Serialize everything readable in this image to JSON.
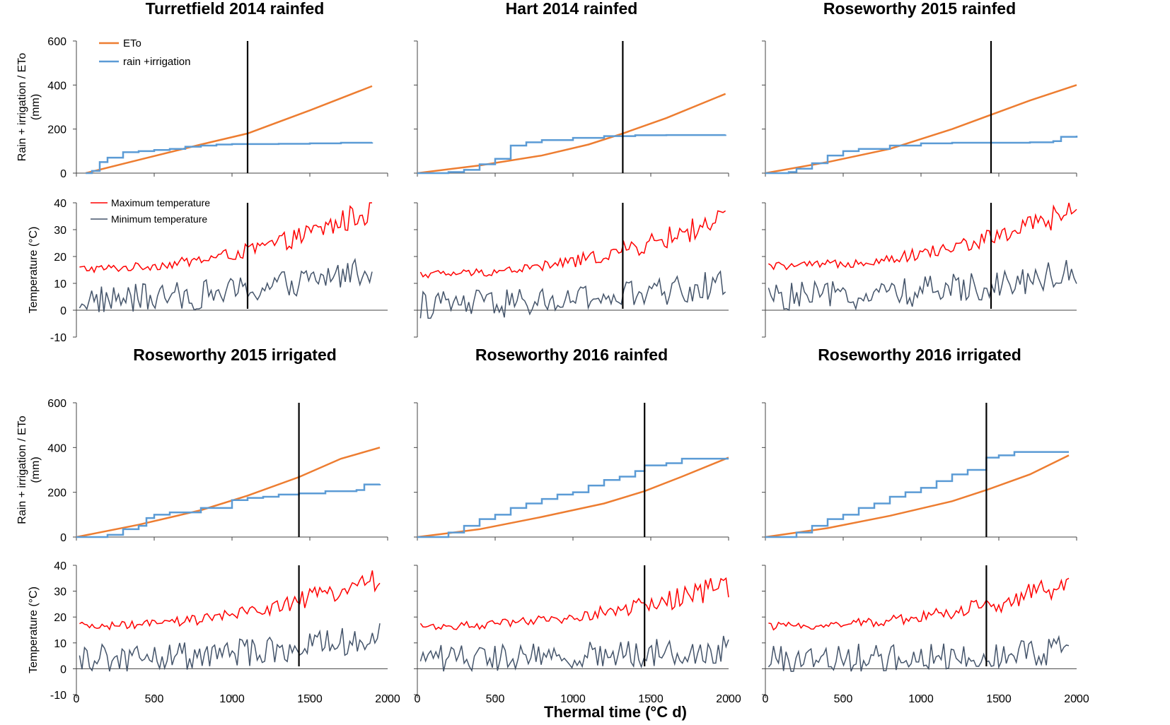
{
  "chart_data": {
    "type": "line",
    "shared_xlabel": "Thermal time (°C d)",
    "xlim": [
      0,
      2000
    ],
    "x_ticks": [
      0,
      500,
      1000,
      1500,
      2000
    ],
    "rain_panel": {
      "ylabel_line1": "Rain + irrigation / ETo",
      "ylabel_line2": "(mm)",
      "ylim": [
        0,
        600
      ],
      "y_ticks": [
        0,
        200,
        400,
        600
      ],
      "legend": [
        {
          "name": "ETo",
          "color": "#ED7D31"
        },
        {
          "name": "rain +irrigation",
          "color": "#5B9BD5"
        }
      ]
    },
    "temp_panel": {
      "ylabel": "Temperature (°C)",
      "ylim": [
        -10,
        40
      ],
      "y_ticks": [
        -10,
        0,
        10,
        20,
        30,
        40
      ],
      "legend": [
        {
          "name": "Maximum temperature",
          "color": "#FF0000"
        },
        {
          "name": "Minimum temperature",
          "color": "#44546A"
        }
      ]
    },
    "sites": [
      {
        "title": "Turretfield 2014 rainfed",
        "flowering_tt": 1100,
        "x_end": 1900,
        "eto": {
          "x": [
            60,
            400,
            800,
            1100,
            1500,
            1900
          ],
          "y": [
            0,
            60,
            130,
            180,
            285,
            395
          ]
        },
        "rain_irrigation": {
          "x": [
            60,
            100,
            150,
            200,
            300,
            400,
            500,
            600,
            700,
            800,
            900,
            1000,
            1100,
            1300,
            1500,
            1700,
            1900
          ],
          "y": [
            0,
            10,
            50,
            70,
            95,
            100,
            105,
            110,
            120,
            125,
            130,
            132,
            132,
            133,
            135,
            138,
            140
          ]
        },
        "tmax_range": [
          11,
          40
        ],
        "tmin_range": [
          -1,
          24
        ]
      },
      {
        "title": "Hart 2014 rainfed",
        "flowering_tt": 1320,
        "x_end": 1980,
        "eto": {
          "x": [
            0,
            400,
            800,
            1100,
            1320,
            1600,
            1980
          ],
          "y": [
            0,
            35,
            80,
            130,
            180,
            250,
            360
          ]
        },
        "rain_irrigation": {
          "x": [
            0,
            200,
            300,
            400,
            500,
            600,
            700,
            800,
            1000,
            1200,
            1400,
            1600,
            1980
          ],
          "y": [
            0,
            5,
            15,
            40,
            65,
            125,
            140,
            150,
            160,
            168,
            172,
            173,
            175
          ]
        },
        "tmax_range": [
          9,
          37
        ],
        "tmin_range": [
          -3,
          17
        ]
      },
      {
        "title": "Roseworthy 2015 rainfed",
        "flowering_tt": 1450,
        "x_end": 2000,
        "eto": {
          "x": [
            0,
            400,
            800,
            1200,
            1450,
            1700,
            2000
          ],
          "y": [
            0,
            50,
            110,
            200,
            265,
            330,
            400
          ]
        },
        "rain_irrigation": {
          "x": [
            0,
            150,
            200,
            300,
            400,
            500,
            600,
            800,
            1000,
            1200,
            1450,
            1700,
            1850,
            1900,
            2000
          ],
          "y": [
            0,
            5,
            20,
            45,
            80,
            100,
            110,
            125,
            135,
            138,
            138,
            140,
            145,
            165,
            170
          ]
        },
        "tmax_range": [
          12,
          40
        ],
        "tmin_range": [
          0,
          22
        ]
      },
      {
        "title": "Roseworthy 2015 irrigated",
        "flowering_tt": 1430,
        "x_end": 1950,
        "eto": {
          "x": [
            0,
            400,
            800,
            1100,
            1430,
            1700,
            1950
          ],
          "y": [
            0,
            55,
            120,
            185,
            268,
            350,
            400
          ]
        },
        "rain_irrigation": {
          "x": [
            0,
            200,
            300,
            400,
            450,
            500,
            600,
            800,
            1000,
            1100,
            1200,
            1300,
            1430,
            1600,
            1800,
            1850,
            1950
          ],
          "y": [
            0,
            10,
            35,
            50,
            85,
            100,
            110,
            130,
            165,
            175,
            180,
            190,
            195,
            205,
            210,
            235,
            237
          ]
        },
        "tmax_range": [
          12,
          38
        ],
        "tmin_range": [
          -1,
          20
        ]
      },
      {
        "title": "Roseworthy 2016 rainfed",
        "flowering_tt": 1460,
        "x_end": 2000,
        "eto": {
          "x": [
            0,
            400,
            800,
            1200,
            1460,
            1700,
            2000
          ],
          "y": [
            0,
            35,
            90,
            150,
            205,
            270,
            355
          ]
        },
        "rain_irrigation": {
          "x": [
            0,
            200,
            300,
            400,
            500,
            600,
            700,
            800,
            900,
            1000,
            1100,
            1200,
            1300,
            1400,
            1460,
            1600,
            1700,
            2000
          ],
          "y": [
            0,
            20,
            50,
            80,
            100,
            130,
            150,
            170,
            190,
            200,
            230,
            255,
            270,
            295,
            320,
            330,
            350,
            350
          ]
        },
        "tmax_range": [
          12,
          35
        ],
        "tmin_range": [
          -1,
          14
        ]
      },
      {
        "title": "Roseworthy 2016 irrigated",
        "flowering_tt": 1420,
        "x_end": 1950,
        "eto": {
          "x": [
            0,
            400,
            800,
            1200,
            1420,
            1700,
            1950
          ],
          "y": [
            0,
            40,
            95,
            160,
            210,
            280,
            365
          ]
        },
        "rain_irrigation": {
          "x": [
            0,
            200,
            300,
            400,
            500,
            600,
            700,
            800,
            900,
            1000,
            1100,
            1200,
            1300,
            1420,
            1500,
            1600,
            1950
          ],
          "y": [
            0,
            20,
            50,
            80,
            100,
            130,
            150,
            180,
            200,
            220,
            250,
            280,
            300,
            355,
            365,
            380,
            380
          ]
        },
        "tmax_range": [
          12,
          35
        ],
        "tmin_range": [
          -1,
          13
        ]
      }
    ]
  }
}
